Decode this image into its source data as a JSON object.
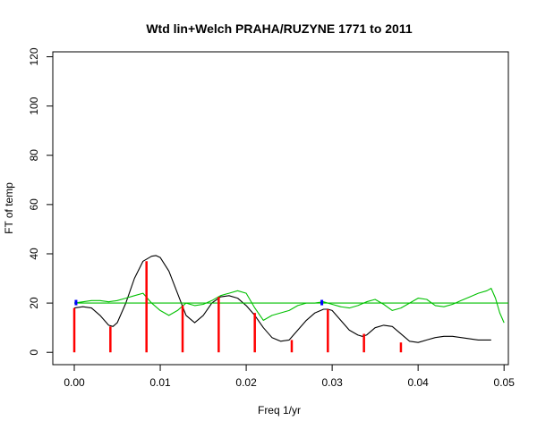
{
  "chart_data": {
    "type": "line",
    "title": "Wtd lin+Welch PRAHA/RUZYNE 1771 to 2011",
    "xlabel": "Freq 1/yr",
    "ylabel": "FT of temp",
    "xlim": [
      -0.0025,
      0.0505
    ],
    "ylim": [
      -5,
      122
    ],
    "xticks": [
      0.0,
      0.01,
      0.02,
      0.03,
      0.04,
      0.05
    ],
    "xtick_labels": [
      "0.00",
      "0.01",
      "0.02",
      "0.03",
      "0.04",
      "0.05"
    ],
    "yticks": [
      0,
      20,
      40,
      60,
      80,
      100,
      120
    ],
    "ytick_labels": [
      "0",
      "20",
      "40",
      "60",
      "80",
      "100",
      "120"
    ],
    "grid": false,
    "series": [
      {
        "color": "#000000",
        "kind": "line",
        "x": [
          0.0,
          0.001,
          0.002,
          0.003,
          0.004,
          0.0045,
          0.005,
          0.006,
          0.007,
          0.008,
          0.009,
          0.0095,
          0.01,
          0.011,
          0.012,
          0.013,
          0.014,
          0.015,
          0.016,
          0.017,
          0.018,
          0.019,
          0.02,
          0.021,
          0.022,
          0.023,
          0.024,
          0.025,
          0.026,
          0.027,
          0.028,
          0.029,
          0.0295,
          0.03,
          0.031,
          0.032,
          0.033,
          0.0335,
          0.034,
          0.035,
          0.036,
          0.037,
          0.038,
          0.039,
          0.04,
          0.041,
          0.042,
          0.043,
          0.044,
          0.045,
          0.046,
          0.047,
          0.048,
          0.0485
        ],
        "y": [
          18,
          18.5,
          18,
          15,
          11,
          10.5,
          12,
          20,
          30,
          37,
          39,
          39.3,
          38.5,
          33,
          24,
          15,
          12,
          15,
          20,
          22.5,
          23,
          22,
          19,
          15,
          10,
          6,
          4.5,
          5,
          9,
          13,
          16,
          17.5,
          17.5,
          17,
          13,
          9,
          7,
          6.5,
          7,
          10,
          11,
          10.5,
          7.5,
          4.5,
          4,
          5,
          6,
          6.5,
          6.5,
          6,
          5.5,
          5,
          5,
          5
        ]
      },
      {
        "color": "#00c000",
        "kind": "line",
        "x": [
          0.0,
          0.001,
          0.002,
          0.003,
          0.004,
          0.005,
          0.006,
          0.007,
          0.008,
          0.009,
          0.01,
          0.011,
          0.012,
          0.013,
          0.014,
          0.015,
          0.016,
          0.017,
          0.018,
          0.019,
          0.02,
          0.021,
          0.022,
          0.023,
          0.024,
          0.025,
          0.026,
          0.027,
          0.028,
          0.029,
          0.03,
          0.031,
          0.032,
          0.033,
          0.034,
          0.035,
          0.036,
          0.037,
          0.038,
          0.039,
          0.04,
          0.041,
          0.042,
          0.043,
          0.044,
          0.045,
          0.046,
          0.047,
          0.048,
          0.0485,
          0.049,
          0.0495,
          0.05
        ],
        "y": [
          20,
          20.5,
          21,
          21,
          20.5,
          21,
          22,
          23,
          24,
          20,
          17,
          15,
          17,
          20,
          19,
          19.5,
          21,
          23,
          24,
          25,
          24,
          18,
          13,
          15,
          16,
          17,
          19,
          20,
          20,
          20.5,
          19.5,
          18.5,
          18,
          19,
          20.5,
          21.5,
          19.5,
          17,
          18,
          20,
          22,
          21.5,
          19,
          18.5,
          19.5,
          21,
          22.5,
          24,
          25,
          26,
          22,
          16,
          12
        ]
      },
      {
        "color": "#00c000",
        "kind": "hline",
        "value": 20
      },
      {
        "color": "#ff0000",
        "kind": "spikes",
        "x": [
          0.0,
          0.0042,
          0.0084,
          0.0126,
          0.0168,
          0.021,
          0.0253,
          0.0295,
          0.0337,
          0.038
        ],
        "y": [
          18,
          10.5,
          37,
          19,
          22.5,
          16,
          5,
          17.5,
          7.5,
          4
        ]
      },
      {
        "color": "#0000ff",
        "kind": "markers",
        "x": [
          0.0002,
          0.0288
        ],
        "y": [
          20.2,
          20.2
        ]
      }
    ]
  }
}
